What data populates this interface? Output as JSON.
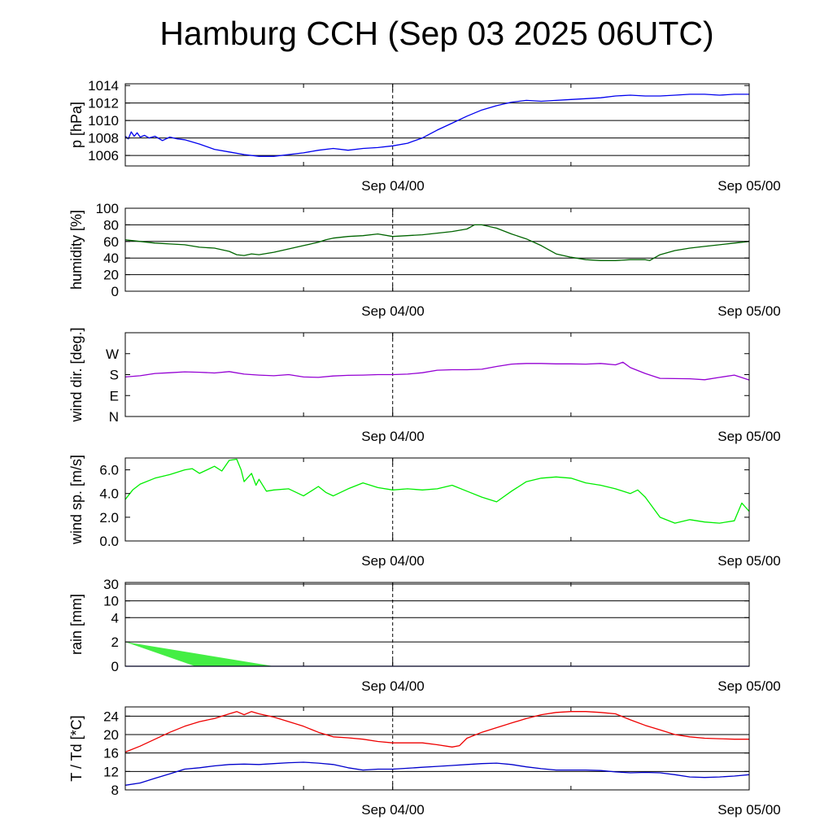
{
  "title": "Hamburg CCH (Sep 03 2025 06UTC)",
  "time_axis": {
    "start": "2025-09-03T06:00Z",
    "end": "2025-09-05T00:00Z",
    "tick_labels": [
      "Sep 04/00",
      "Sep 05/00"
    ],
    "tick_times": [
      "2025-09-04T00:00Z",
      "2025-09-05T00:00Z"
    ],
    "minor_ticks_hours": [
      12,
      30
    ],
    "marker_line": "Sep 04/00"
  },
  "colors": {
    "pressure": "#0000ee",
    "humidity": "#006400",
    "wind_dir": "#9400d3",
    "wind_speed": "#00ee00",
    "rain_fill": "#44ee44",
    "rain_line": "#0000aa",
    "temperature": "#ee0000",
    "dewpoint": "#0000cc"
  },
  "chart_data": [
    {
      "id": "pressure",
      "type": "line",
      "ylabel": "p [hPa]",
      "ylim": [
        1004.8,
        1014.2
      ],
      "yticks": [
        1006,
        1008,
        1010,
        1012,
        1014
      ],
      "grid": [
        1006,
        1008,
        1010,
        1012
      ],
      "series": [
        {
          "color_key": "pressure",
          "x": [
            0,
            0.2,
            0.4,
            0.6,
            0.8,
            1,
            1.3,
            1.6,
            2,
            2.5,
            3,
            3.5,
            4,
            5,
            6,
            7,
            8,
            9,
            10,
            11,
            12,
            13,
            14,
            15,
            16,
            17,
            18,
            19,
            20,
            21,
            22,
            23,
            24,
            25,
            26,
            27,
            28,
            29,
            30,
            31,
            32,
            33,
            34,
            35,
            36,
            37,
            38,
            39,
            40,
            41,
            42
          ],
          "y": [
            1008.2,
            1007.9,
            1008.7,
            1008.2,
            1008.6,
            1008.1,
            1008.3,
            1008.0,
            1008.2,
            1007.7,
            1008.1,
            1007.9,
            1007.8,
            1007.3,
            1006.7,
            1006.4,
            1006.1,
            1005.9,
            1005.9,
            1006.1,
            1006.3,
            1006.6,
            1006.8,
            1006.6,
            1006.8,
            1006.9,
            1007.1,
            1007.4,
            1008.0,
            1008.9,
            1009.7,
            1010.5,
            1011.2,
            1011.7,
            1012.1,
            1012.3,
            1012.2,
            1012.3,
            1012.4,
            1012.5,
            1012.6,
            1012.8,
            1012.9,
            1012.8,
            1012.8,
            1012.9,
            1013.0,
            1013.0,
            1012.9,
            1013.0,
            1013.0
          ]
        }
      ]
    },
    {
      "id": "humidity",
      "type": "line",
      "ylabel": "humidity [%]",
      "ylim": [
        0,
        100
      ],
      "yticks": [
        0,
        20,
        40,
        60,
        80,
        100
      ],
      "grid": [
        20,
        40,
        60,
        80
      ],
      "series": [
        {
          "color_key": "humidity",
          "x": [
            0,
            1,
            2,
            3,
            4,
            5,
            6,
            7,
            7.5,
            8,
            8.5,
            9,
            10,
            11,
            12,
            13,
            13.5,
            14,
            15,
            16,
            17,
            18,
            20,
            21,
            22,
            23,
            23.5,
            24,
            25,
            26,
            27,
            28,
            29,
            30,
            31,
            32,
            33,
            34,
            35,
            35.3,
            36,
            37,
            38,
            39,
            40,
            41,
            42
          ],
          "y": [
            62,
            60,
            58,
            57,
            56,
            53,
            52,
            48,
            44,
            43,
            45,
            44,
            47,
            51,
            55,
            59,
            62,
            64,
            66,
            67,
            69,
            66,
            68,
            70,
            72,
            75,
            80,
            80,
            76,
            69,
            63,
            55,
            45,
            41,
            38,
            37,
            37,
            38,
            38,
            37,
            44,
            49,
            52,
            54,
            56,
            58,
            60
          ]
        }
      ]
    },
    {
      "id": "wind_dir",
      "type": "line",
      "ylabel": "wind dir. [deg.]",
      "ylim": [
        0,
        360
      ],
      "yticks": [
        0,
        90,
        180,
        270
      ],
      "ytick_labels": [
        "N",
        "E",
        "S",
        "W"
      ],
      "series": [
        {
          "color_key": "wind_dir",
          "x": [
            0,
            1,
            2,
            3,
            4,
            5,
            6,
            7,
            8,
            9,
            10,
            11,
            12,
            13,
            14,
            15,
            16,
            17,
            18,
            19,
            20,
            21,
            22,
            23,
            24,
            25,
            26,
            27,
            28,
            29,
            30,
            31,
            32,
            33,
            33.5,
            34,
            35,
            36,
            37,
            38,
            39,
            40,
            41,
            42
          ],
          "y": [
            170,
            175,
            185,
            188,
            192,
            190,
            187,
            193,
            182,
            178,
            175,
            180,
            170,
            168,
            174,
            177,
            178,
            180,
            180,
            182,
            188,
            199,
            201,
            201,
            203,
            215,
            225,
            228,
            228,
            226,
            226,
            225,
            228,
            222,
            233,
            210,
            185,
            164,
            163,
            162,
            158,
            168,
            178,
            157
          ]
        }
      ]
    },
    {
      "id": "wind_speed",
      "type": "line",
      "ylabel": "wind sp. [m/s]",
      "ylim": [
        0,
        7.0
      ],
      "yticks": [
        0,
        2,
        4,
        6
      ],
      "ytick_labels": [
        "0.0",
        "2.0",
        "4.0",
        "6.0"
      ],
      "series": [
        {
          "color_key": "wind_speed",
          "x": [
            0,
            0.5,
            1,
            2,
            3,
            4,
            4.5,
            5,
            5.5,
            6,
            6.5,
            7,
            7.5,
            7.8,
            8,
            8.5,
            8.8,
            9,
            9.5,
            10,
            11,
            12,
            12.5,
            13,
            13.5,
            14,
            15,
            16,
            17,
            18,
            19,
            20,
            21,
            22,
            23,
            24,
            25,
            26,
            27,
            28,
            29,
            30,
            31,
            32,
            33,
            34,
            34.5,
            35,
            36,
            37,
            38,
            39,
            40,
            41,
            41.5,
            42
          ],
          "y": [
            3.5,
            4.3,
            4.8,
            5.3,
            5.6,
            6.0,
            6.1,
            5.7,
            6.0,
            6.3,
            5.9,
            6.8,
            6.9,
            6.0,
            5.0,
            5.7,
            4.7,
            5.2,
            4.2,
            4.3,
            4.4,
            3.8,
            4.2,
            4.6,
            4.1,
            3.8,
            4.4,
            4.9,
            4.5,
            4.3,
            4.4,
            4.3,
            4.4,
            4.7,
            4.2,
            3.7,
            3.3,
            4.2,
            5.0,
            5.3,
            5.4,
            5.3,
            4.9,
            4.7,
            4.4,
            4.0,
            4.3,
            3.7,
            2.0,
            1.5,
            1.8,
            1.6,
            1.5,
            1.7,
            3.2,
            2.5
          ]
        }
      ]
    },
    {
      "id": "rain",
      "type": "area",
      "ylabel": "rain [mm]",
      "ylim": [
        0,
        30
      ],
      "yticks": [
        0,
        2,
        4,
        10,
        30
      ],
      "grid": [
        2,
        4,
        10,
        30
      ],
      "scale": "nonlinear",
      "series": [
        {
          "name": "",
          "color_key": "rain_fill",
          "upper": {
            "x": [
              0,
              10
            ],
            "y": [
              2.0,
              0
            ]
          },
          "lower": {
            "x": [
              0,
              4.7
            ],
            "y": [
              2.0,
              0
            ]
          }
        },
        {
          "name": "",
          "color_key": "rain_line",
          "x": [
            0,
            42
          ],
          "y": [
            0,
            0
          ]
        }
      ]
    },
    {
      "id": "temperature",
      "type": "line",
      "ylabel": "T / Td [*C]",
      "ylim": [
        8,
        26
      ],
      "yticks": [
        8,
        12,
        16,
        20,
        24
      ],
      "grid": [
        12,
        16,
        20,
        24
      ],
      "series": [
        {
          "color_key": "temperature",
          "x": [
            0,
            1,
            2,
            3,
            4,
            5,
            6,
            7,
            7.5,
            8,
            8.5,
            9,
            10,
            11,
            12,
            13,
            14,
            15,
            16,
            17,
            18,
            19,
            20,
            21,
            22,
            22.5,
            23,
            24,
            25,
            26,
            27,
            28,
            29,
            30,
            31,
            32,
            33,
            34,
            35,
            36,
            37,
            38,
            39,
            40,
            41,
            42
          ],
          "y": [
            16.2,
            17.5,
            19.0,
            20.5,
            21.8,
            22.8,
            23.5,
            24.5,
            25.0,
            24.3,
            25.0,
            24.5,
            23.8,
            22.8,
            21.8,
            20.5,
            19.5,
            19.3,
            19.0,
            18.5,
            18.2,
            18.2,
            18.2,
            17.8,
            17.3,
            17.6,
            19.2,
            20.5,
            21.5,
            22.5,
            23.5,
            24.3,
            24.8,
            25.0,
            25.0,
            24.8,
            24.5,
            23.2,
            22.0,
            21.0,
            20.0,
            19.5,
            19.2,
            19.1,
            19.0,
            19.0
          ]
        },
        {
          "color_key": "dewpoint",
          "x": [
            0,
            1,
            2,
            3,
            4,
            5,
            6,
            7,
            8,
            9,
            10,
            11,
            12,
            13,
            14,
            15,
            16,
            17,
            18,
            19,
            20,
            21,
            22,
            23,
            24,
            25,
            26,
            27,
            28,
            29,
            30,
            31,
            32,
            33,
            34,
            35,
            36,
            37,
            38,
            39,
            40,
            41,
            42
          ],
          "y": [
            9.0,
            9.5,
            10.5,
            11.5,
            12.5,
            12.8,
            13.2,
            13.5,
            13.6,
            13.5,
            13.7,
            13.9,
            14.0,
            13.8,
            13.5,
            12.8,
            12.3,
            12.5,
            12.5,
            12.7,
            12.9,
            13.1,
            13.3,
            13.5,
            13.7,
            13.8,
            13.5,
            13.0,
            12.6,
            12.3,
            12.3,
            12.3,
            12.2,
            11.9,
            11.7,
            11.8,
            11.7,
            11.3,
            10.8,
            10.7,
            10.8,
            11.0,
            11.3
          ]
        }
      ]
    }
  ]
}
